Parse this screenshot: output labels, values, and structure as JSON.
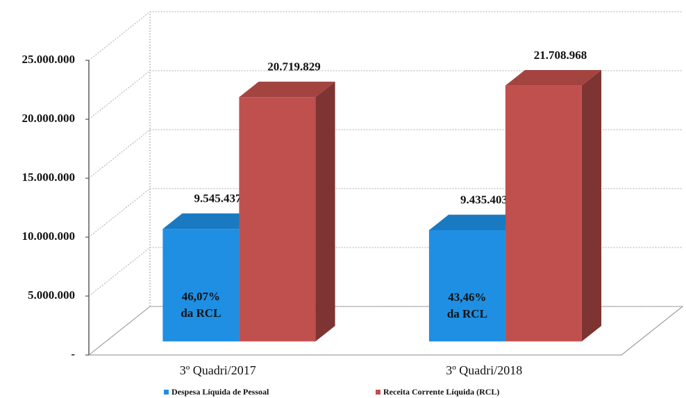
{
  "chart_data": {
    "type": "bar3d",
    "categories": [
      "3º Quadri/2017",
      "3º Quadri/2018"
    ],
    "series": [
      {
        "name": "Despesa Líquida de Pessoal",
        "color": "#1f8fe3",
        "values": [
          9545437,
          9435403
        ],
        "value_labels": [
          "9.545.437",
          "9.435.403"
        ]
      },
      {
        "name": "Receita Corrente Líquida (RCL)",
        "color": "#c0504d",
        "values": [
          20719829,
          21708968
        ],
        "value_labels": [
          "20.719.829",
          "21.708.968"
        ]
      }
    ],
    "annotations": [
      [
        "46,07%",
        "da RCL"
      ],
      [
        "43,46%",
        "da RCL"
      ]
    ],
    "ylim": [
      0,
      25000000
    ],
    "yticks": [
      {
        "value": 0,
        "label": "-"
      },
      {
        "value": 5000000,
        "label": "5.000.000"
      },
      {
        "value": 10000000,
        "label": "10.000.000"
      },
      {
        "value": 15000000,
        "label": "15.000.000"
      },
      {
        "value": 20000000,
        "label": "20.000.000"
      },
      {
        "value": 25000000,
        "label": "25.000.000"
      }
    ],
    "grid": true,
    "legend": "bottom"
  }
}
